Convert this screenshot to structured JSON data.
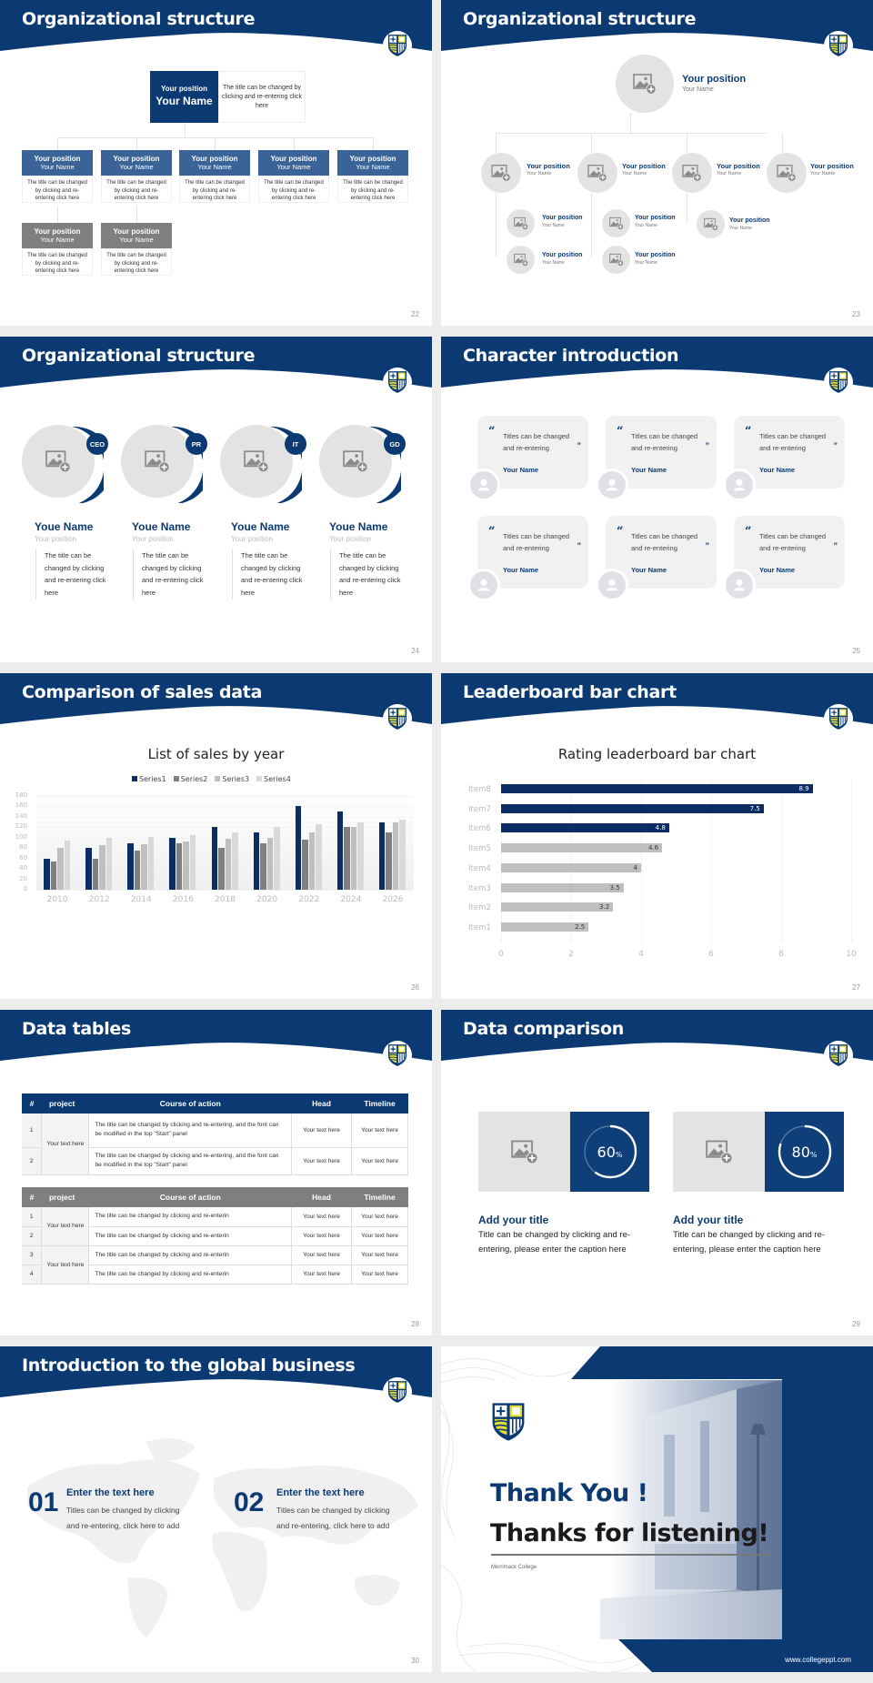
{
  "colors": {
    "navy": "#0b3a73",
    "bar_blue": "#3a6497",
    "gray_head": "#7f7f7f",
    "light_gray": "#e4e3e3"
  },
  "slides": [
    {
      "title": "Organizational structure",
      "page": "22",
      "top": {
        "position": "Your position",
        "name": "Your Name",
        "desc": "The title can be changed by clicking and re-entering click here"
      },
      "cards": [
        {
          "position": "Your position",
          "name": "Your Name",
          "desc": "The title can be changed by clicking and re-entering click here",
          "style": "blue"
        },
        {
          "position": "Your position",
          "name": "Your Name",
          "desc": "The title can be changed by clicking and re-entering click here",
          "style": "blue"
        },
        {
          "position": "Your position",
          "name": "Your Name",
          "desc": "The title can be changed by clicking and re-entering click here",
          "style": "blue"
        },
        {
          "position": "Your position",
          "name": "Your Name",
          "desc": "The title can be changed by clicking and re-entering click here",
          "style": "blue"
        },
        {
          "position": "Your position",
          "name": "Your Name",
          "desc": "The title can be changed by clicking and re-entering click here",
          "style": "blue"
        },
        {
          "position": "Your position",
          "name": "Your Name",
          "desc": "The title can be changed by clicking and re-entering click here",
          "style": "gray"
        },
        {
          "position": "Your position",
          "name": "Your Name",
          "desc": "The title can be changed by clicking and re-entering click here",
          "style": "gray"
        }
      ]
    },
    {
      "title": "Organizational structure",
      "page": "23",
      "root": {
        "position": "Your position",
        "name": "Your Name"
      },
      "level1": [
        {
          "position": "Your position",
          "name": "Your Name"
        },
        {
          "position": "Your position",
          "name": "Your Name"
        },
        {
          "position": "Your position",
          "name": "Your Name"
        },
        {
          "position": "Your position",
          "name": "Your Name"
        }
      ],
      "level2": [
        {
          "position": "Your position",
          "name": "Your Name"
        },
        {
          "position": "Your position",
          "name": "Your Name"
        },
        {
          "position": "Your position",
          "name": "Your Name"
        },
        {
          "position": "Your position",
          "name": "Your Name"
        },
        {
          "position": "Your position",
          "name": "Your Name"
        }
      ]
    },
    {
      "title": "Organizational structure",
      "page": "24",
      "people": [
        {
          "badge": "CEO",
          "name": "Youe Name",
          "position": "Your position",
          "desc": "The title can be changed by clicking and re-entering click here"
        },
        {
          "badge": "PR",
          "name": "Youe Name",
          "position": "Your position",
          "desc": "The title can be changed by clicking and re-entering click here"
        },
        {
          "badge": "IT",
          "name": "Youe Name",
          "position": "Your position",
          "desc": "The title can be changed by clicking and re-entering click here"
        },
        {
          "badge": "GD",
          "name": "Youe Name",
          "position": "Your position",
          "desc": "The title can be changed by clicking and re-entering click here"
        }
      ]
    },
    {
      "title": "Character introduction",
      "page": "25",
      "quotes": [
        {
          "text": "Titles can be changed and re-entering",
          "name": "Your Name"
        },
        {
          "text": "Titles can be changed and re-entering",
          "name": "Your Name"
        },
        {
          "text": "Titles can be changed and re-entering",
          "name": "Your Name"
        },
        {
          "text": "Titles can be changed and re-entering",
          "name": "Your Name"
        },
        {
          "text": "Titles can be changed and re-entering",
          "name": "Your Name"
        },
        {
          "text": "Titles can be changed and re-entering",
          "name": "Your Name"
        }
      ]
    },
    {
      "title": "Comparison of sales data",
      "page": "26"
    },
    {
      "title": "Leaderboard bar chart",
      "page": "27"
    },
    {
      "title": "Data tables",
      "page": "28",
      "table1": {
        "headers": [
          "#",
          "project",
          "Course of action",
          "Head",
          "Timeline"
        ],
        "project": "Your text here",
        "rows": [
          {
            "idx": "1",
            "action": "The title can be changed by clicking and re-entering, and the font can be modified in the top \"Start\" panel",
            "head": "Your text here",
            "timeline": "Your text here"
          },
          {
            "idx": "2",
            "action": "The title can be changed by clicking and re-entering, and the font can be modified in the top \"Start\" panel",
            "head": "Your text here",
            "timeline": "Your text here"
          }
        ]
      },
      "table2": {
        "headers": [
          "#",
          "project",
          "Course of action",
          "Head",
          "Timeline"
        ],
        "projects": [
          "Your text here",
          "Your text here"
        ],
        "rows": [
          {
            "idx": "1",
            "action": "The title can be changed by clicking and re-enterin",
            "head": "Your text here",
            "timeline": "Your text here"
          },
          {
            "idx": "2",
            "action": "The title can be changed by clicking and re-enterin",
            "head": "Your text here",
            "timeline": "Your text here"
          },
          {
            "idx": "3",
            "action": "The title can be changed by clicking and re-enterin",
            "head": "Your text here",
            "timeline": "Your text here"
          },
          {
            "idx": "4",
            "action": "The title can be changed by clicking and re-enterin",
            "head": "Your text here",
            "timeline": "Your text here"
          }
        ]
      }
    },
    {
      "title": "Data comparison",
      "page": "29",
      "items": [
        {
          "value": "60",
          "unit": "%",
          "title": "Add your title",
          "desc": "Title can be changed by clicking and re-entering, please enter the caption here"
        },
        {
          "value": "80",
          "unit": "%",
          "title": "Add your title",
          "desc": "Title can be changed by clicking and re-entering, please enter the caption here"
        }
      ]
    },
    {
      "title": "Introduction to the global business",
      "page": "30",
      "items": [
        {
          "num": "01",
          "title": "Enter the text here",
          "desc": "Titles can be changed by clicking and re-entering, click here to add"
        },
        {
          "num": "02",
          "title": "Enter the text here",
          "desc": "Titles can be changed by clicking and re-entering, click here to add"
        }
      ]
    },
    {
      "line1": "Thank You !",
      "line2": "Thanks for listening!",
      "college": "Merrimack College",
      "url": "www.collegeppt.com"
    }
  ],
  "chart_data": [
    {
      "type": "bar",
      "title": "List of sales by year",
      "categories": [
        "2010",
        "2012",
        "2014",
        "2016",
        "2018",
        "2020",
        "2022",
        "2024",
        "2026"
      ],
      "series": [
        {
          "name": "Series1",
          "color": "#0b2d64",
          "values": [
            60,
            80,
            90,
            100,
            120,
            110,
            160,
            150,
            130
          ]
        },
        {
          "name": "Series2",
          "color": "#7f7f7f",
          "values": [
            55,
            60,
            75,
            90,
            80,
            90,
            96,
            120,
            110
          ]
        },
        {
          "name": "Series3",
          "color": "#bfbfbf",
          "values": [
            80,
            86,
            88,
            92,
            98,
            100,
            110,
            120,
            130
          ]
        },
        {
          "name": "Series4",
          "color": "#d9d9d9",
          "values": [
            95,
            100,
            102,
            105,
            110,
            120,
            126,
            130,
            135
          ]
        }
      ],
      "yticks": [
        "0",
        "20",
        "40",
        "60",
        "80",
        "100",
        "120",
        "140",
        "160",
        "180"
      ],
      "ylim": [
        0,
        180
      ],
      "xlabel": "",
      "ylabel": "",
      "legend_position": "top",
      "grid": true
    },
    {
      "type": "bar",
      "orientation": "horizontal",
      "title": "Rating leaderboard bar chart",
      "categories": [
        "Item8",
        "Item7",
        "Item6",
        "Item5",
        "Item4",
        "Item3",
        "Item2",
        "Item1"
      ],
      "values": [
        8.9,
        7.5,
        4.8,
        4.6,
        4,
        3.5,
        3.2,
        2.5
      ],
      "labels": [
        "8.9",
        "7.5",
        "4.8",
        "4.6",
        "4",
        "3.5",
        "3.2",
        "2.5"
      ],
      "highlight_top": 3,
      "xticks": [
        "0",
        "2",
        "4",
        "6",
        "8",
        "10"
      ],
      "xlim": [
        0,
        10
      ],
      "xlabel": "",
      "ylabel": "",
      "grid": true
    }
  ]
}
